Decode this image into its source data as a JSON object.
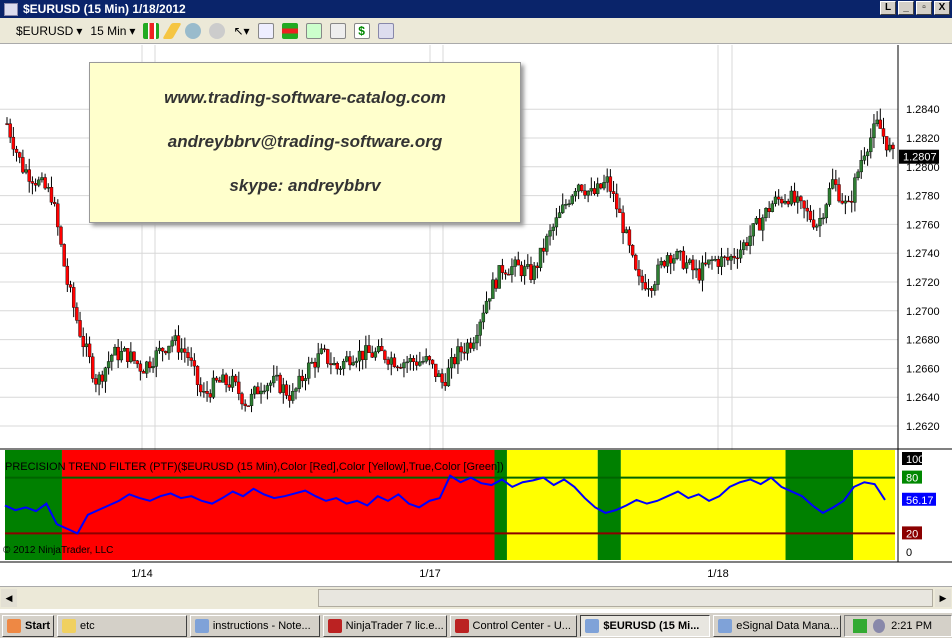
{
  "window": {
    "title": "$EURUSD (15 Min)  1/18/2012",
    "controls": [
      "L",
      "_",
      "▫",
      "X"
    ]
  },
  "toolbar": {
    "instrument": "$EURUSD",
    "interval": "15 Min",
    "icons": [
      "candlestick-style-icon",
      "pencil-icon",
      "zoom-in-icon",
      "zoom-out-icon",
      "cursor-icon",
      "search-icon",
      "bar-chart-icon",
      "data-box-icon",
      "indicator-icon",
      "dollar-icon",
      "properties-icon"
    ]
  },
  "ad": {
    "line1": "www.trading-software-catalog.com",
    "line2": "andreybbrv@trading-software.org",
    "line3": "skype: andreybbrv"
  },
  "indicator": {
    "label": "PRECISION TREND FILTER (PTF)($EURUSD (15 Min),Color [Red],Color [Yellow],True,Color [Green])",
    "scale": [
      "100",
      "80",
      "56.17",
      "20",
      "0"
    ],
    "current": "56.17"
  },
  "copyright": "© 2012 NinjaTrader, LLC",
  "colors": {
    "up": "#2e7d32",
    "down": "#ff0000",
    "green_zone": "#008000",
    "red_zone": "#ff0000",
    "yellow_zone": "#ffff00",
    "line": "#0000ff",
    "current_price_bg": "#000000"
  },
  "chart_data": [
    {
      "type": "candlestick",
      "instrument": "$EURUSD",
      "interval": "15 Min",
      "y_ticks": [
        "1.2840",
        "1.2820",
        "1.2800",
        "1.2780",
        "1.2760",
        "1.2740",
        "1.2720",
        "1.2700",
        "1.2680",
        "1.2660",
        "1.2640",
        "1.2620"
      ],
      "ylim": [
        1.261,
        1.2855
      ],
      "x_ticks": [
        "1/14",
        "1/17",
        "1/18"
      ],
      "current_price": "1.2807",
      "approx_close_path": [
        1.283,
        1.28,
        1.279,
        1.278,
        1.272,
        1.268,
        1.265,
        1.267,
        1.267,
        1.266,
        1.267,
        1.268,
        1.267,
        1.264,
        1.265,
        1.265,
        1.2635,
        1.265,
        1.265,
        1.264,
        1.266,
        1.267,
        1.266,
        1.267,
        1.267,
        1.267,
        1.2665,
        1.2665,
        1.2665,
        1.265,
        1.267,
        1.268,
        1.271,
        1.273,
        1.273,
        1.2725,
        1.275,
        1.277,
        1.279,
        1.278,
        1.279,
        1.276,
        1.272,
        1.272,
        1.274,
        1.2735,
        1.2725,
        1.2735,
        1.2735,
        1.2745,
        1.276,
        1.2775,
        1.278,
        1.277,
        1.276,
        1.279,
        1.277,
        1.281,
        1.283,
        1.2807
      ]
    },
    {
      "type": "line",
      "name": "PTF",
      "ylim": [
        0,
        100
      ],
      "levels": [
        80,
        20
      ],
      "values": [
        50,
        45,
        48,
        44,
        52,
        30,
        25,
        20,
        40,
        45,
        50,
        55,
        62,
        58,
        55,
        60,
        63,
        58,
        60,
        55,
        52,
        58,
        65,
        60,
        68,
        62,
        58,
        60,
        63,
        66,
        60,
        55,
        58,
        52,
        55,
        50,
        60,
        55,
        62,
        52,
        48,
        55,
        58,
        82,
        75,
        80,
        74,
        72,
        78,
        70,
        75,
        77,
        80,
        72,
        78,
        70,
        58,
        48,
        42,
        45,
        50,
        56,
        52,
        55,
        60,
        65,
        58,
        62,
        55,
        60,
        70,
        75,
        78,
        73,
        80,
        70,
        65,
        60,
        50,
        42,
        48,
        55,
        70,
        75,
        73,
        56
      ],
      "zones": [
        [
          "green",
          0.0
        ],
        [
          "red",
          0.064
        ],
        [
          "green",
          0.55
        ],
        [
          "yellow",
          0.564
        ],
        [
          "green",
          0.666
        ],
        [
          "yellow",
          0.692
        ],
        [
          "green",
          0.877
        ],
        [
          "yellow",
          0.953
        ]
      ]
    }
  ],
  "taskbar": {
    "start": "Start",
    "tasks": [
      "etc",
      "instructions - Note...",
      "NinjaTrader 7 lic.e...",
      "Control Center - U...",
      "$EURUSD (15 Mi...",
      "eSignal Data Mana..."
    ],
    "active": 4,
    "clock": "2:21 PM"
  }
}
